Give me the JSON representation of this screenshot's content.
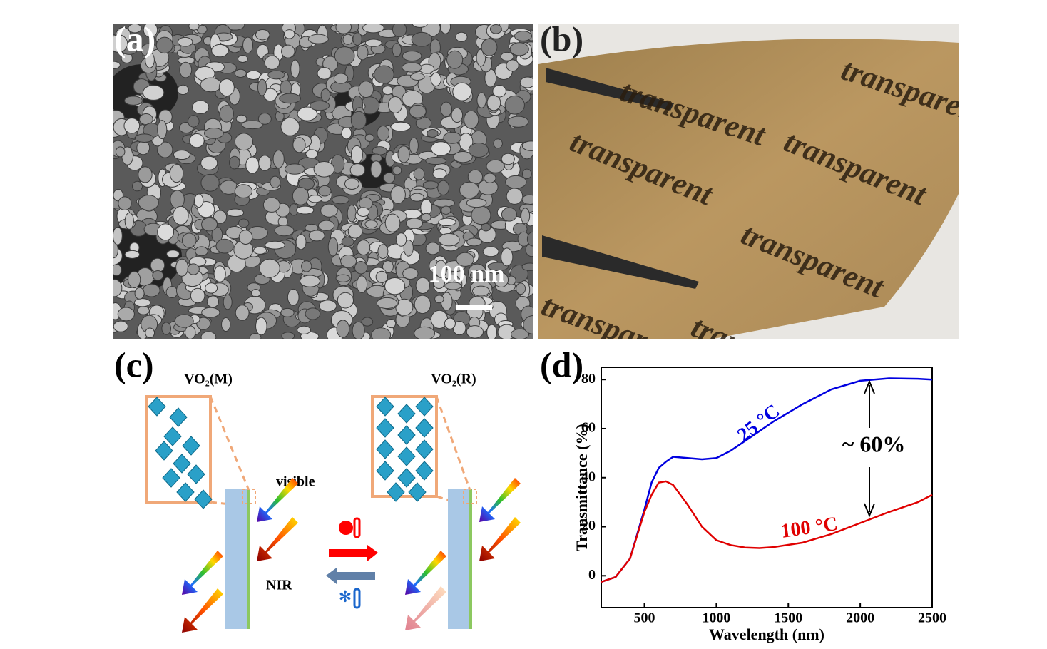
{
  "panels": [
    {
      "label": "(a)",
      "scale_bar": "100 nm"
    },
    {
      "label": "(b)",
      "photo_text": "transparent"
    },
    {
      "label": "(c)",
      "phase_left": "VO₂(M)",
      "phase_right": "VO₂(R)",
      "light_visible": "visible",
      "light_nir": "NIR"
    },
    {
      "label": "(d)"
    }
  ],
  "chart_data": {
    "type": "line",
    "x_label": "Wavelength (nm)",
    "y_label": "Transmittance (%)",
    "x": [
      200,
      300,
      400,
      500,
      550,
      600,
      650,
      700,
      800,
      900,
      1000,
      1050,
      1100,
      1200,
      1300,
      1400,
      1600,
      1800,
      2000,
      2200,
      2400,
      2500
    ],
    "series": [
      {
        "name": "25 °C",
        "color": "#0000e0",
        "values": [
          -2.5,
          -0.5,
          7,
          27,
          38,
          44,
          46.5,
          48.5,
          48,
          47.5,
          48,
          49.5,
          51,
          55,
          59,
          63,
          70,
          76,
          79.5,
          80.5,
          80.3,
          80
        ]
      },
      {
        "name": "100 °C",
        "color": "#e00000",
        "values": [
          -2.5,
          -0.5,
          7,
          26,
          33,
          38,
          38.5,
          37,
          29,
          20,
          14.5,
          13.5,
          12.5,
          11.5,
          11.3,
          11.7,
          13.5,
          17,
          21.5,
          26,
          30,
          33
        ]
      }
    ],
    "annotation": "~ 60%",
    "xlim": [
      200,
      2500
    ],
    "xticks": [
      500,
      1000,
      1500,
      2000,
      2500
    ],
    "ylim": [
      -13,
      85
    ],
    "yticks": [
      0,
      20,
      40,
      60,
      80
    ],
    "grid": false
  }
}
